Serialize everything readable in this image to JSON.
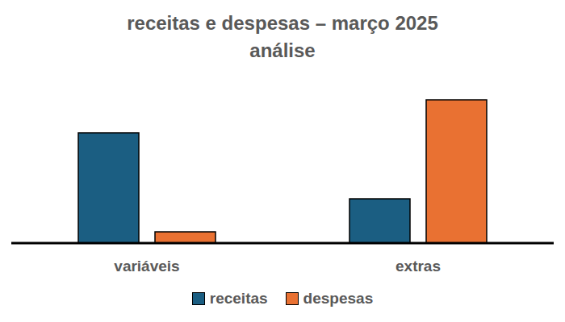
{
  "chart_data": {
    "type": "bar",
    "title": "receitas e despesas – março 2025",
    "subtitle": "análise",
    "categories": [
      "variáveis",
      "extras"
    ],
    "series": [
      {
        "name": "receitas",
        "color": "#1b5e82",
        "values": [
          137,
          55
        ]
      },
      {
        "name": "despesas",
        "color": "#e97132",
        "values": [
          14,
          178
        ]
      }
    ],
    "tick_labels": "x",
    "grid": false
  }
}
